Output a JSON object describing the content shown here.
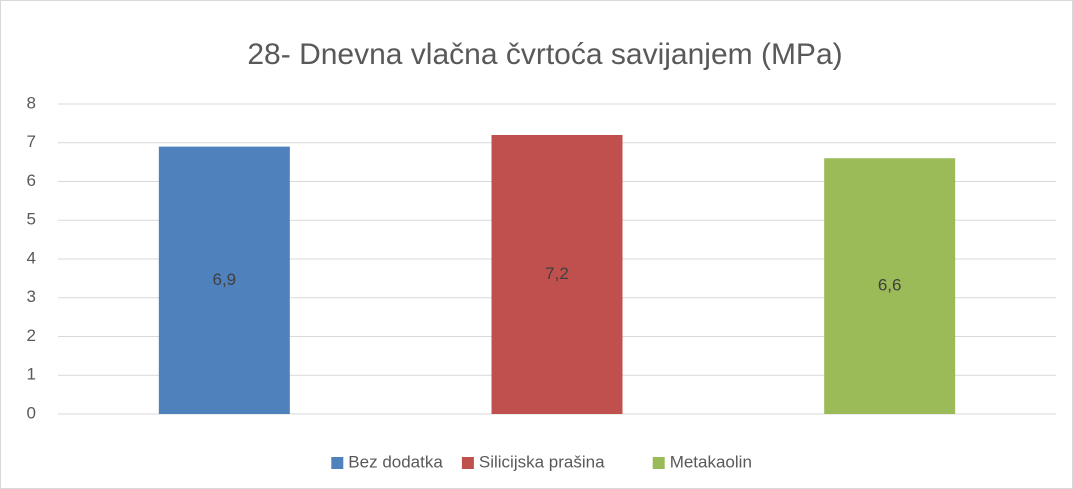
{
  "chart_data": {
    "type": "bar",
    "title": "28- Dnevna vlačna čvrtoća savijanjem (MPa)",
    "categories": [
      null
    ],
    "series": [
      {
        "name": "Bez dodatka",
        "color": "#4f81bd",
        "values": [
          6.9
        ],
        "value_labels": [
          "6,9"
        ]
      },
      {
        "name": "Silicijska prašina",
        "color": "#c0504d",
        "values": [
          7.2
        ],
        "value_labels": [
          "7,2"
        ]
      },
      {
        "name": "Metakaolin",
        "color": "#9bbb59",
        "values": [
          6.6
        ],
        "value_labels": [
          "6,6"
        ]
      }
    ],
    "ylim": [
      0,
      8
    ],
    "yticks": [
      0,
      1,
      2,
      3,
      4,
      5,
      6,
      7,
      8
    ],
    "grid": true,
    "legend": "bottom"
  }
}
